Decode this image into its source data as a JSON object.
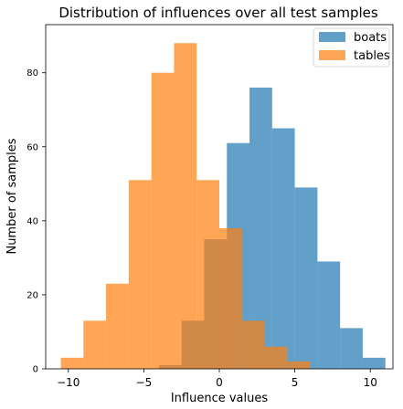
{
  "chart_data": {
    "type": "histogram",
    "title": "Distribution of influences over all test samples",
    "xlabel": "Influence values",
    "ylabel": "Number of samples",
    "xlim": [
      -11.5,
      11.5
    ],
    "ylim": [
      0,
      93
    ],
    "xticks": [
      -10,
      -5,
      0,
      5,
      10
    ],
    "xtick_labels": [
      "−10",
      "−5",
      "0",
      "5",
      "10"
    ],
    "yticks": [
      0,
      20,
      40,
      60,
      80
    ],
    "ytick_labels": [
      "0",
      "20",
      "40",
      "60",
      "80"
    ],
    "legend_position": "top-right",
    "series": [
      {
        "name": "boats",
        "color": "#1f77b4",
        "alpha": 0.7,
        "bin_edges": [
          -4.0,
          -2.5,
          -1.0,
          0.5,
          2.0,
          3.5,
          5.0,
          6.5,
          8.0,
          9.5,
          11.0
        ],
        "counts": [
          1,
          13,
          35,
          61,
          76,
          65,
          49,
          29,
          11,
          3
        ]
      },
      {
        "name": "tables",
        "color": "#ff7f0e",
        "alpha": 0.7,
        "bin_edges": [
          -10.5,
          -9.0,
          -7.5,
          -6.0,
          -4.5,
          -3.0,
          -1.5,
          0.0,
          1.5,
          3.0,
          4.5,
          6.0
        ],
        "counts": [
          3,
          13,
          23,
          51,
          80,
          88,
          51,
          38,
          13,
          6,
          2
        ]
      }
    ]
  }
}
